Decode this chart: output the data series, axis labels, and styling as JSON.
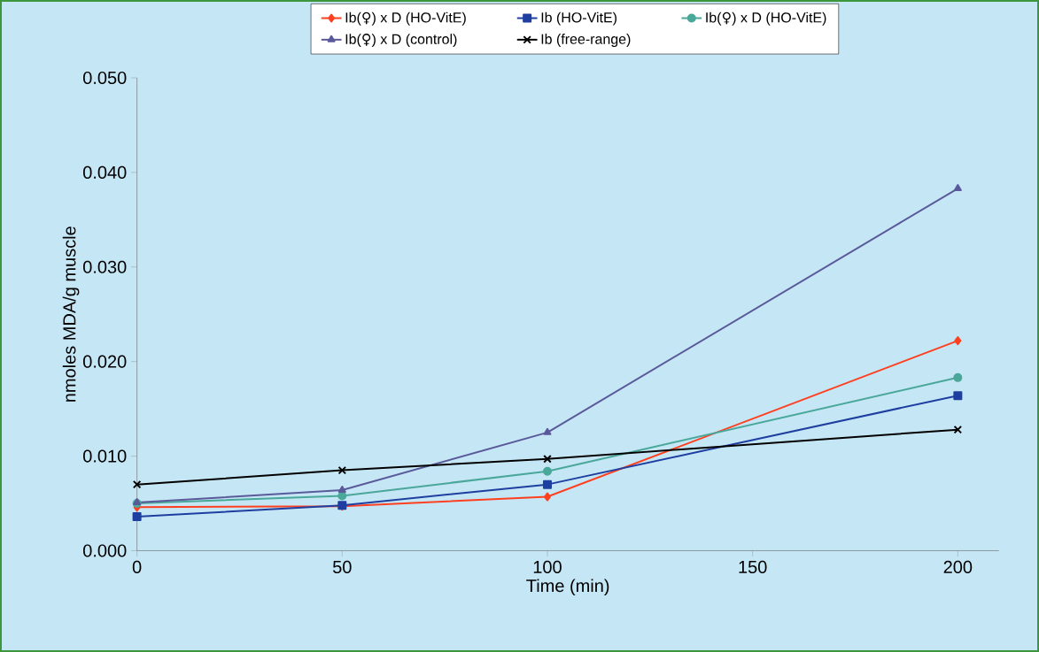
{
  "chart_data": {
    "type": "line",
    "xlabel": "Time (min)",
    "ylabel": "nmoles MDA/g muscle",
    "x": [
      0,
      50,
      100,
      200
    ],
    "series": [
      {
        "name": "Ib(♀) x D (HO-VitE)",
        "color": "#ff4020",
        "marker": "diamond",
        "values": [
          0.0046,
          0.0047,
          0.0057,
          0.0222
        ]
      },
      {
        "name": "Ib (HO-VitE)",
        "color": "#1f3fa0",
        "marker": "square",
        "values": [
          0.0036,
          0.0048,
          0.007,
          0.0164
        ]
      },
      {
        "name": "Ib(♀) x D (HO-VitE)",
        "color": "#4aa89a",
        "marker": "circle",
        "values": [
          0.005,
          0.0058,
          0.0084,
          0.0183
        ]
      },
      {
        "name": "Ib(♀) x D (control)",
        "color": "#5a5a9a",
        "marker": "triangle",
        "values": [
          0.0051,
          0.0064,
          0.0125,
          0.0383
        ]
      },
      {
        "name": "Ib (free-range)",
        "color": "#000000",
        "marker": "cross",
        "values": [
          0.007,
          0.0085,
          0.0097,
          0.0128
        ]
      }
    ],
    "xlim": [
      0,
      210
    ],
    "xticks": [
      0,
      50,
      100,
      150,
      200
    ],
    "ylim": [
      0,
      0.05
    ],
    "yticks": [
      {
        "value": 0,
        "label": "0.000"
      },
      {
        "value": 0.01,
        "label": "0.010"
      },
      {
        "value": 0.02,
        "label": "0.020"
      },
      {
        "value": 0.03,
        "label": "0.030"
      },
      {
        "value": 0.04,
        "label": "0.040"
      },
      {
        "value": 0.05,
        "label": "0.050"
      }
    ],
    "legend": "top",
    "grid": false,
    "line_style": "solid"
  }
}
